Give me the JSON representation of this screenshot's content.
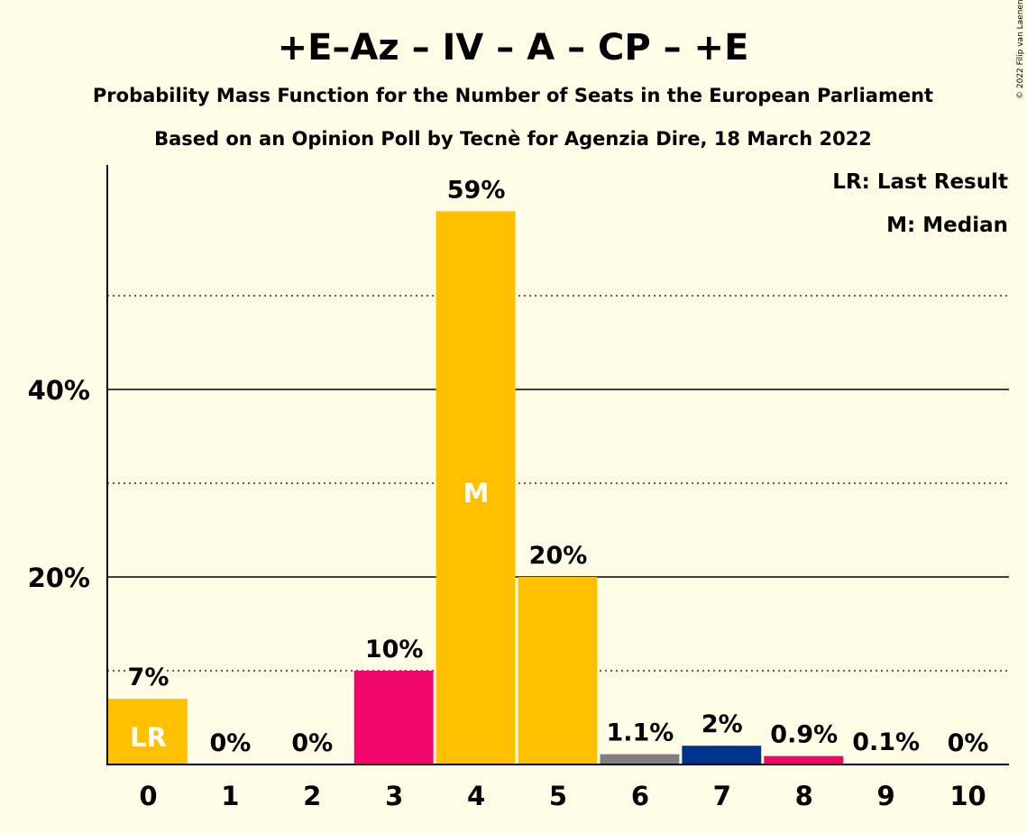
{
  "header": {
    "title": "+E–Az – IV – A – CP – +E",
    "subtitle1": "Probability Mass Function for the Number of Seats in the European Parliament",
    "subtitle2": "Based on an Opinion Poll by Tecnè for Agenzia Dire, 18 March 2022"
  },
  "legend": {
    "lr": "LR: Last Result",
    "median": "M: Median",
    "placement": "top-right"
  },
  "copyright": "© 2022 Filip van Laenen",
  "chart_data": {
    "type": "bar",
    "categories": [
      "0",
      "1",
      "2",
      "3",
      "4",
      "5",
      "6",
      "7",
      "8",
      "9",
      "10"
    ],
    "values": [
      7,
      0,
      0,
      10,
      59,
      20,
      1.1,
      2,
      0.9,
      0.1,
      0
    ],
    "labels": [
      "7%",
      "0%",
      "0%",
      "10%",
      "59%",
      "20%",
      "1.1%",
      "2%",
      "0.9%",
      "0.1%",
      "0%"
    ],
    "colors": [
      "#FFC000",
      "#FFC000",
      "#FFC000",
      "#F0056A",
      "#FFC000",
      "#FFC000",
      "#808080",
      "#00338D",
      "#F0056A",
      "#FFC000",
      "#FFC000"
    ],
    "ylim": [
      0,
      64
    ],
    "yticks": [
      {
        "value": 20,
        "label": "20%"
      },
      {
        "value": 40,
        "label": "40%"
      }
    ],
    "minor_gridlines": [
      10,
      30,
      50
    ],
    "last_result_index": 0,
    "last_result_marker": "LR",
    "median_index": 4,
    "median_marker": "M",
    "grid": true
  }
}
